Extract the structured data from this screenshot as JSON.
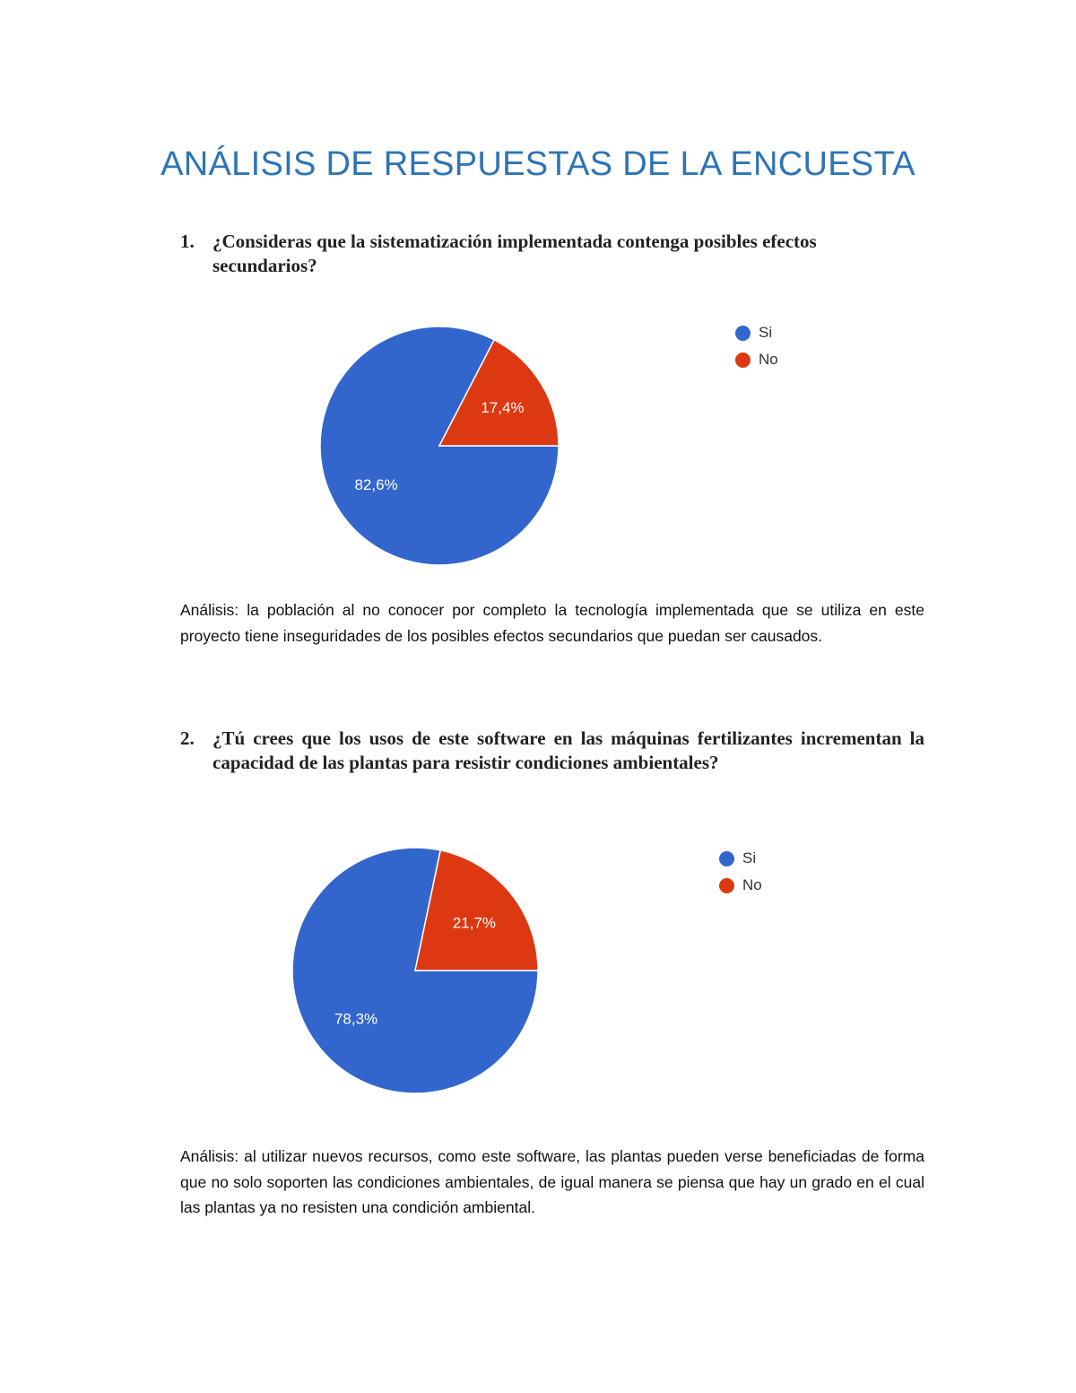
{
  "title": "ANÁLISIS DE RESPUESTAS DE LA ENCUESTA",
  "questions": [
    {
      "number": "1.",
      "text": "¿Consideras que la sistematización implementada contenga posibles efectos secundarios?",
      "analysis_label": "Análisis:",
      "analysis": " la población al no conocer por completo la tecnología implementada que se utiliza en este proyecto tiene inseguridades de los posibles efectos secundarios que puedan ser causados."
    },
    {
      "number": "2.",
      "text": "¿Tú crees que los usos de este software en las máquinas fertilizantes incrementan la capacidad de las plantas para resistir condiciones ambientales?",
      "analysis_label": "Análisis:",
      "analysis": " al utilizar nuevos recursos, como este software, las plantas pueden verse beneficiadas de forma que no solo soporten las condiciones ambientales, de igual manera se piensa que hay un grado en el cual las plantas ya no resisten una condición ambiental."
    }
  ],
  "chart_data": [
    {
      "type": "pie",
      "categories": [
        "Si",
        "No"
      ],
      "values": [
        82.6,
        17.4
      ],
      "labels": [
        "82,6%",
        "17,4%"
      ],
      "colors": [
        "#3366CC",
        "#DC3912"
      ],
      "legend": [
        "Si",
        "No"
      ],
      "legend_position": "right"
    },
    {
      "type": "pie",
      "categories": [
        "Si",
        "No"
      ],
      "values": [
        78.3,
        21.7
      ],
      "labels": [
        "78,3%",
        "21,7%"
      ],
      "colors": [
        "#3366CC",
        "#DC3912"
      ],
      "legend": [
        "Si",
        "No"
      ],
      "legend_position": "right"
    }
  ]
}
